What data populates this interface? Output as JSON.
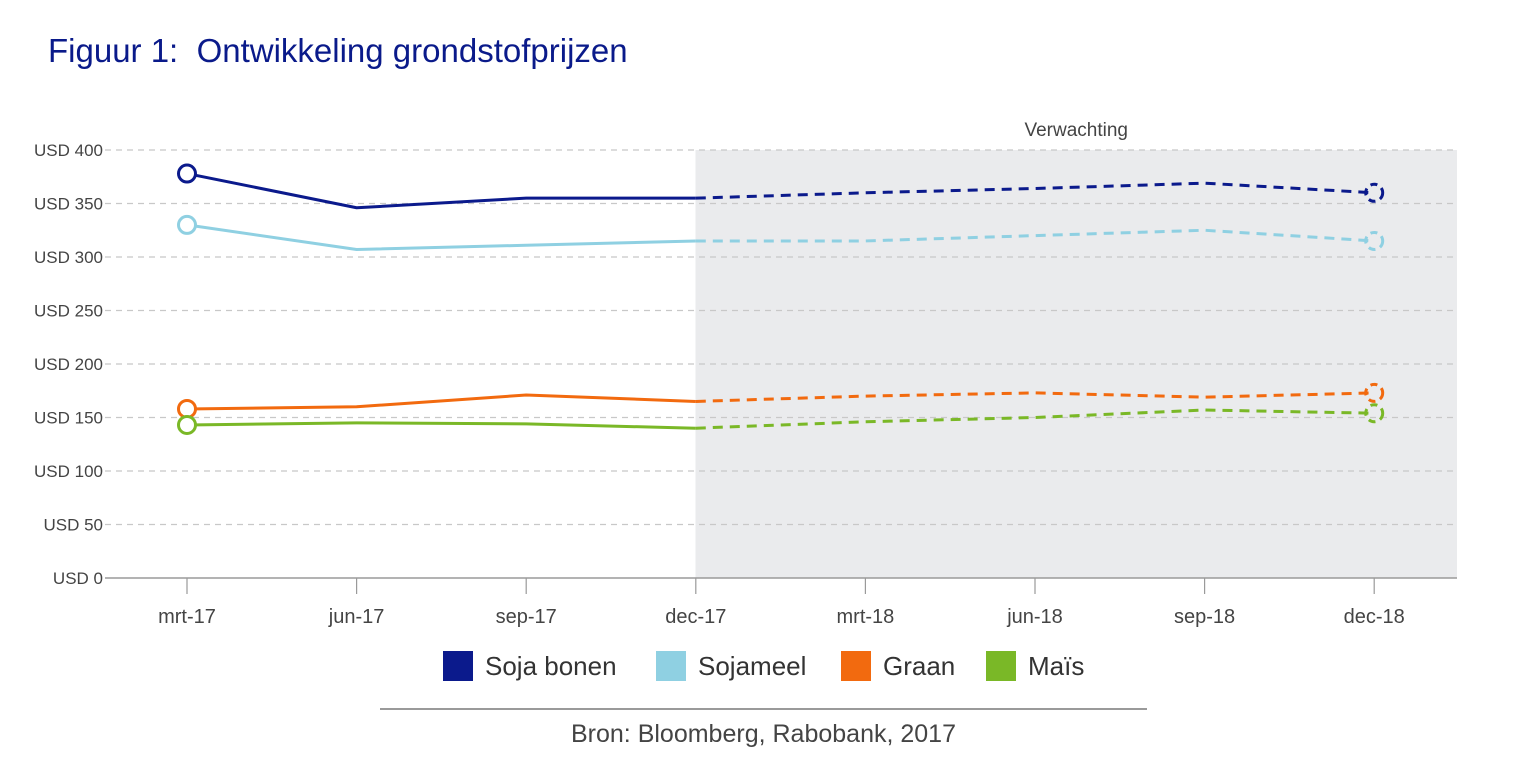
{
  "title": "Figuur 1:  Ontwikkeling grondstofprijzen",
  "source": "Bron: Bloomberg, Rabobank, 2017",
  "colors": {
    "soja_bonen": "#0b1a8c",
    "sojameel": "#8fd0e2",
    "graan": "#f26a0f",
    "mais": "#7ab827",
    "forecast_bg": "#eaebed",
    "grid": "#c8c8c8",
    "axis": "#9a9a9a"
  },
  "chart_data": {
    "type": "line",
    "title": "Figuur 1:  Ontwikkeling grondstofprijzen",
    "categories": [
      "mrt-17",
      "jun-17",
      "sep-17",
      "dec-17",
      "mrt-18",
      "jun-18",
      "sep-18",
      "dec-18"
    ],
    "y_ticks": [
      "USD 0",
      "USD 50",
      "USD 100",
      "USD 150",
      "USD 200",
      "USD 250",
      "USD 300",
      "USD 350",
      "USD 400"
    ],
    "ylim": [
      0,
      400
    ],
    "y_step": 50,
    "grid": "horizontal dashed",
    "forecast": {
      "label": "Verwachting",
      "from_category": "dec-17",
      "to_category": "dec-18",
      "style": "dashed line on grey background"
    },
    "legend_position": "bottom",
    "series": [
      {
        "name": "Soja bonen",
        "color": "#0b1a8c",
        "values": [
          378,
          346,
          355,
          355,
          360,
          364,
          369,
          360
        ]
      },
      {
        "name": "Sojameel",
        "color": "#8fd0e2",
        "values": [
          330,
          307,
          311,
          315,
          315,
          320,
          325,
          315
        ]
      },
      {
        "name": "Graan",
        "color": "#f26a0f",
        "values": [
          158,
          160,
          171,
          165,
          170,
          173,
          169,
          173
        ]
      },
      {
        "name": "Maïs",
        "color": "#7ab827",
        "values": [
          143,
          145,
          144,
          140,
          146,
          150,
          157,
          154
        ]
      }
    ]
  }
}
